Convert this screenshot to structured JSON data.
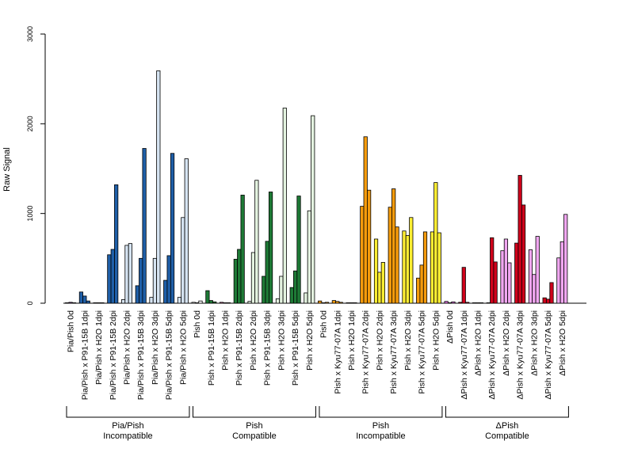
{
  "chart_data": {
    "type": "bar",
    "ylabel": "Raw Signal",
    "ylim": [
      0,
      3000
    ],
    "yticks": [
      0,
      1000,
      2000,
      3000
    ],
    "categories": [
      "Pia/Pish 0d",
      "Pia/Pish x P91-15B 1dpi",
      "Pia/Pish x H2O 1dpi",
      "Pia/Pish x P91-15B 2dpi",
      "Pia/Pish x H2O 2dpi",
      "Pia/Pish x P91-15B 3dpi",
      "Pia/Pish x H2O 3dpi",
      "Pia/Pish x P91-15B 5dpi",
      "Pia/Pish x H2O 5dpi",
      "Pish 0d",
      "Pish x P91-15B 1dpi",
      "Pish x H2O 1dpi",
      "Pish x P91-15B 2dpi",
      "Pish x H2O 2dpi",
      "Pish x P91-15B 3dpi",
      "Pish x H2O 3dpi",
      "Pish x P91-15B 5dpi",
      "Pish x H2O 5dpi",
      "Pish 0d",
      "Pish x Kyu77-07A 1dpi",
      "Pish x H2O 1dpi",
      "Pish x Kyu77-07A 2dpi",
      "Pish x H2O 2dpi",
      "Pish x Kyu77-07A 3dpi",
      "Pish x H2O 3dpi",
      "Pish x Kyu77-07A 5dpi",
      "Pish x H2O 5dpi",
      "ΔPish 0d",
      "ΔPish x Kyu77-07A 1dpi",
      "ΔPish x H2O 1dpi",
      "ΔPish x Kyu77-07A 2dpi",
      "ΔPish x H2O 2dpi",
      "ΔPish x Kyu77-07A 3dpi",
      "ΔPish x H2O 3dpi",
      "ΔPish x Kyu77-07A 5dpi",
      "ΔPish x H2O 5dpi"
    ],
    "colors": [
      "#7b2d8e",
      "#1f5fa8",
      "#e35fa0",
      "#1f5fa8",
      "#d6e4f2",
      "#1f5fa8",
      "#d6e4f2",
      "#1f5fa8",
      "#d6e4f2",
      "#ffffff",
      "#1e7a36",
      "#e35fa0",
      "#1e7a36",
      "#e4f3e0",
      "#1e7a36",
      "#e4f3e0",
      "#1e7a36",
      "#e4f3e0",
      "#f59b0c",
      "#f59b0c",
      "#b82020",
      "#f59b0c",
      "#ffee33",
      "#f59b0c",
      "#ffee33",
      "#f59b0c",
      "#ffee33",
      "#e36fe3",
      "#d0021b",
      "#6b2da0",
      "#d0021b",
      "#f1a7f1",
      "#d0021b",
      "#f1a7f1",
      "#d0021b",
      "#f1a7f1"
    ],
    "values": [
      [
        5,
        10,
        5
      ],
      [
        125,
        80,
        25
      ],
      [
        5,
        5,
        5
      ],
      [
        540,
        600,
        1320
      ],
      [
        40,
        645,
        665
      ],
      [
        195,
        500,
        1725
      ],
      [
        65,
        500,
        2590
      ],
      [
        255,
        530,
        1670
      ],
      [
        65,
        955,
        1610
      ],
      [
        10,
        5,
        25
      ],
      [
        140,
        30,
        15
      ],
      [
        10,
        5,
        5
      ],
      [
        490,
        600,
        1205
      ],
      [
        20,
        565,
        1370
      ],
      [
        300,
        690,
        1240
      ],
      [
        50,
        300,
        2175
      ],
      [
        175,
        360,
        1195
      ],
      [
        115,
        1030,
        2090
      ],
      [
        25,
        5,
        10
      ],
      [
        30,
        20,
        10
      ],
      [
        5,
        5,
        5
      ],
      [
        1080,
        1855,
        1260
      ],
      [
        715,
        345,
        455
      ],
      [
        1070,
        1275,
        850
      ],
      [
        805,
        755,
        955
      ],
      [
        280,
        425,
        795
      ],
      [
        795,
        1345,
        785
      ],
      [
        20,
        5,
        15
      ],
      [
        10,
        400,
        10
      ],
      [
        5,
        5,
        5
      ],
      [
        5,
        730,
        460
      ],
      [
        585,
        715,
        450
      ],
      [
        670,
        1425,
        1095
      ],
      [
        595,
        320,
        745
      ],
      [
        60,
        45,
        230
      ],
      [
        505,
        685,
        990
      ]
    ],
    "groups": [
      {
        "line1": "Pia/Pish",
        "line2": "Incompatible",
        "start": 0,
        "end": 8
      },
      {
        "line1": "Pish",
        "line2": "Compatible",
        "start": 9,
        "end": 17
      },
      {
        "line1": "Pish",
        "line2": "Incompatible",
        "start": 18,
        "end": 26
      },
      {
        "line1": "ΔPish",
        "line2": "Compatible",
        "start": 27,
        "end": 35
      }
    ]
  }
}
